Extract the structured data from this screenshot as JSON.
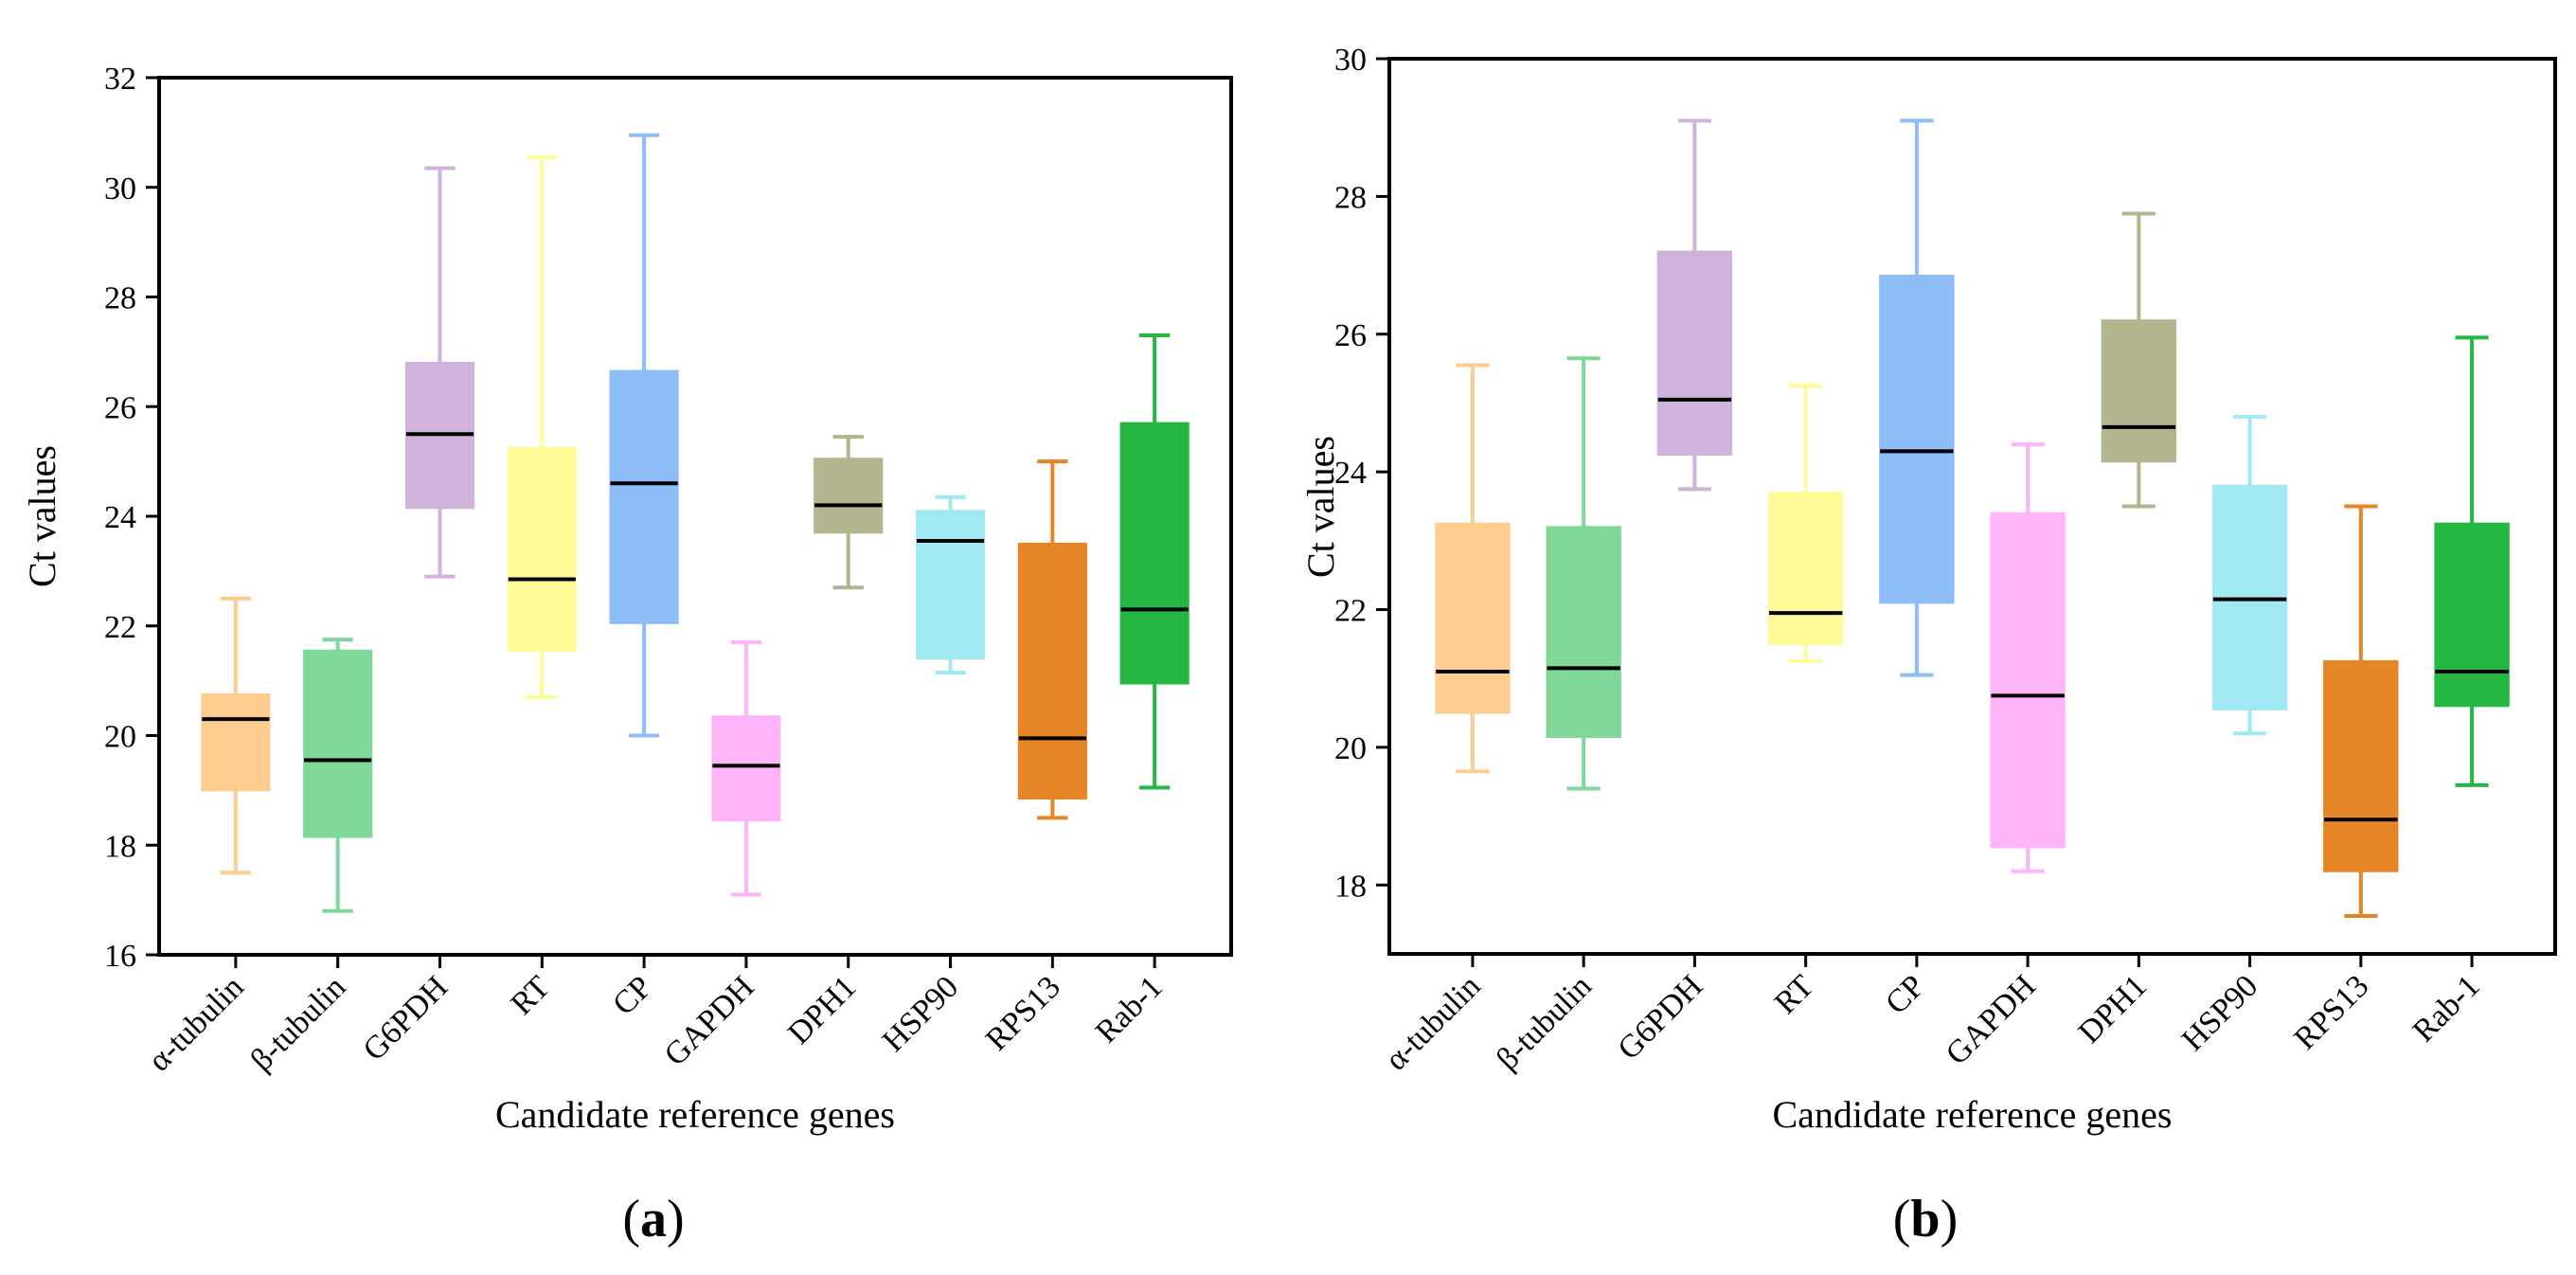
{
  "chart_data": [
    {
      "type": "boxplot",
      "panel_label": "a",
      "xlabel": "Candidate reference genes",
      "ylabel": "Ct values",
      "ylim": [
        16,
        32
      ],
      "yticks": [
        16,
        18,
        20,
        22,
        24,
        26,
        28,
        30,
        32
      ],
      "categories": [
        "α-tubulin",
        "β-tubulin",
        "G6PDH",
        "RT",
        "CP",
        "GAPDH",
        "DPH1",
        "HSP90",
        "RPS13",
        "Rab-1"
      ],
      "colors": [
        "#FFCC8F",
        "#7FD89A",
        "#CFB3DB",
        "#FFFB99",
        "#8DBDF7",
        "#FFB3F9",
        "#B4B48F",
        "#A0E8F2",
        "#E68526",
        "#24B742"
      ],
      "boxes": [
        {
          "min": 17.5,
          "q1": 19.0,
          "median": 20.3,
          "q3": 20.75,
          "max": 22.5
        },
        {
          "min": 16.8,
          "q1": 18.15,
          "median": 19.55,
          "q3": 21.55,
          "max": 21.75
        },
        {
          "min": 22.9,
          "q1": 24.15,
          "median": 25.5,
          "q3": 26.8,
          "max": 30.35
        },
        {
          "min": 20.7,
          "q1": 21.55,
          "median": 22.85,
          "q3": 25.25,
          "max": 30.55
        },
        {
          "min": 20.0,
          "q1": 22.05,
          "median": 24.6,
          "q3": 26.65,
          "max": 30.95
        },
        {
          "min": 17.1,
          "q1": 18.45,
          "median": 19.45,
          "q3": 20.35,
          "max": 21.7
        },
        {
          "min": 22.7,
          "q1": 23.7,
          "median": 24.2,
          "q3": 25.05,
          "max": 25.45
        },
        {
          "min": 21.15,
          "q1": 21.4,
          "median": 23.55,
          "q3": 24.1,
          "max": 24.35
        },
        {
          "min": 18.5,
          "q1": 18.85,
          "median": 19.95,
          "q3": 23.5,
          "max": 25.0
        },
        {
          "min": 19.05,
          "q1": 20.95,
          "median": 22.3,
          "q3": 25.7,
          "max": 27.3
        }
      ]
    },
    {
      "type": "boxplot",
      "panel_label": "b",
      "xlabel": "Candidate reference genes",
      "ylabel": "Ct values",
      "ylim": [
        17,
        30
      ],
      "yticks": [
        18,
        20,
        22,
        24,
        26,
        28,
        30
      ],
      "categories": [
        "α-tubulin",
        "β-tubulin",
        "G6PDH",
        "RT",
        "CP",
        "GAPDH",
        "DPH1",
        "HSP90",
        "RPS13",
        "Rab-1"
      ],
      "colors": [
        "#FFCC8F",
        "#7FD89A",
        "#CFB3DB",
        "#FFFB99",
        "#8DBDF7",
        "#FFB3F9",
        "#B4B48F",
        "#A0E8F2",
        "#E68526",
        "#24B742"
      ],
      "boxes": [
        {
          "min": 19.65,
          "q1": 20.5,
          "median": 21.1,
          "q3": 23.25,
          "max": 25.55
        },
        {
          "min": 19.4,
          "q1": 20.15,
          "median": 21.15,
          "q3": 23.2,
          "max": 25.65
        },
        {
          "min": 23.75,
          "q1": 24.25,
          "median": 25.05,
          "q3": 27.2,
          "max": 29.1
        },
        {
          "min": 21.25,
          "q1": 21.5,
          "median": 21.95,
          "q3": 23.7,
          "max": 25.25
        },
        {
          "min": 21.05,
          "q1": 22.1,
          "median": 24.3,
          "q3": 26.85,
          "max": 29.1
        },
        {
          "min": 18.2,
          "q1": 18.55,
          "median": 20.75,
          "q3": 23.4,
          "max": 24.4
        },
        {
          "min": 23.5,
          "q1": 24.15,
          "median": 24.65,
          "q3": 26.2,
          "max": 27.75
        },
        {
          "min": 20.2,
          "q1": 20.55,
          "median": 22.15,
          "q3": 23.8,
          "max": 24.8
        },
        {
          "min": 17.55,
          "q1": 18.2,
          "median": 18.95,
          "q3": 21.25,
          "max": 23.5
        },
        {
          "min": 19.45,
          "q1": 20.6,
          "median": 21.1,
          "q3": 23.25,
          "max": 25.95
        }
      ]
    }
  ]
}
